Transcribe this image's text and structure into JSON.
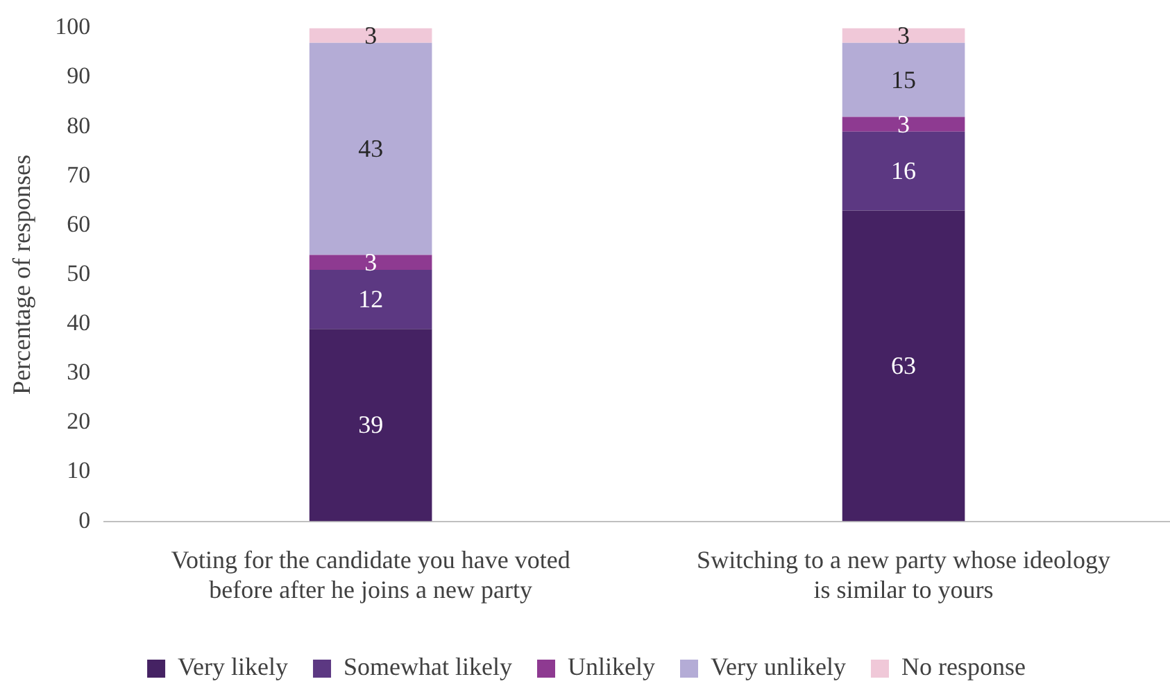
{
  "chart_data": {
    "type": "bar",
    "stacked": true,
    "ylabel": "Percentage of responses",
    "categories": [
      "Voting for the candidate you have voted before after he joins a new party",
      "Switching to a new party whose ideology is similar to yours"
    ],
    "series": [
      {
        "name": "Very likely",
        "color": "#452263",
        "values": [
          39,
          63
        ]
      },
      {
        "name": "Somewhat likely",
        "color": "#5c3882",
        "values": [
          12,
          16
        ]
      },
      {
        "name": "Unlikely",
        "color": "#8e3a91",
        "values": [
          3,
          3
        ]
      },
      {
        "name": "Very unlikely",
        "color": "#b4acd6",
        "values": [
          43,
          15
        ]
      },
      {
        "name": "No response",
        "color": "#f0c8d8",
        "values": [
          3,
          3
        ]
      }
    ],
    "ylim": [
      0,
      100
    ],
    "yticks": [
      0,
      10,
      20,
      30,
      40,
      50,
      60,
      70,
      80,
      90,
      100
    ],
    "grid": false,
    "legend": "bottom",
    "data_labels": true
  }
}
